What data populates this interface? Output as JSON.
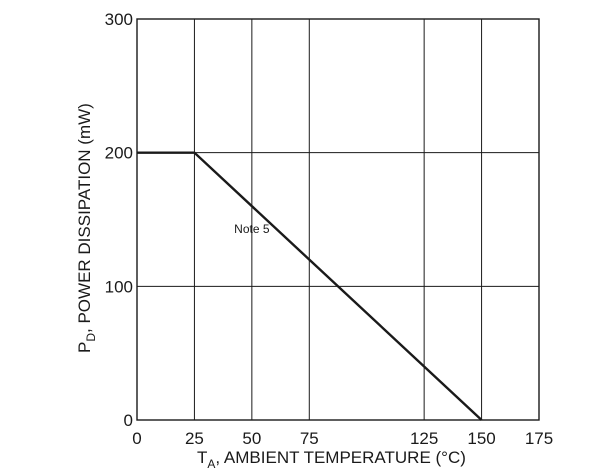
{
  "chart_data": {
    "type": "line",
    "xlabel_main": "T",
    "xlabel_sub": "A",
    "xlabel_rest": ", AMBIENT TEMPERATURE (°C)",
    "ylabel_main": "P",
    "ylabel_sub": "D",
    "ylabel_rest": ", POWER DISSIPATION (mW)",
    "xlim": [
      0,
      175
    ],
    "ylim": [
      0,
      300
    ],
    "x_ticks": [
      0,
      25,
      50,
      75,
      125,
      150,
      175
    ],
    "x_tick_labels": [
      "0",
      "25",
      "50",
      "75",
      "125",
      "150",
      "175"
    ],
    "y_ticks": [
      0,
      100,
      200,
      300
    ],
    "y_tick_labels": [
      "0",
      "100",
      "200",
      "300"
    ],
    "grid": true,
    "series": [
      {
        "x": [
          0,
          25,
          150
        ],
        "y": [
          200,
          200,
          0
        ]
      }
    ],
    "annotations": [
      {
        "text": "Note 5",
        "x": 50,
        "y": 140
      }
    ]
  },
  "colors": {
    "line": "#1a1a1a",
    "grid": "#1a1a1a",
    "background": "#ffffff"
  }
}
